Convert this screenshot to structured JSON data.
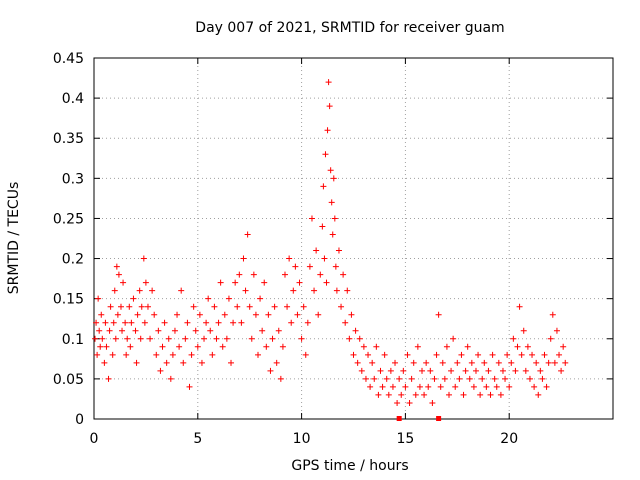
{
  "chart_data": {
    "type": "scatter",
    "title": "Day 007 of 2021, SRMTID for receiver guam",
    "xlabel": "GPS time / hours",
    "ylabel": "SRMTID / TECUs",
    "xlim": [
      0,
      25
    ],
    "ylim": [
      0,
      0.45
    ],
    "x_ticks": [
      0,
      5,
      10,
      15,
      20
    ],
    "x_tick_labels": [
      "0",
      "5",
      "10",
      "15",
      "20"
    ],
    "y_ticks": [
      0,
      0.05,
      0.1,
      0.15,
      0.2,
      0.25,
      0.3,
      0.35,
      0.4,
      0.45
    ],
    "y_tick_labels": [
      "0",
      "0.05",
      "0.1",
      "0.15",
      "0.2",
      "0.25",
      "0.3",
      "0.35",
      "0.4",
      "0.45"
    ],
    "grid": true,
    "marker": "+",
    "color": "#ff0000",
    "series": [
      {
        "name": "SRMTID",
        "points": [
          [
            0.05,
            0.1
          ],
          [
            0.1,
            0.12
          ],
          [
            0.15,
            0.08
          ],
          [
            0.2,
            0.15
          ],
          [
            0.25,
            0.11
          ],
          [
            0.3,
            0.09
          ],
          [
            0.35,
            0.13
          ],
          [
            0.4,
            0.1
          ],
          [
            0.5,
            0.07
          ],
          [
            0.55,
            0.12
          ],
          [
            0.6,
            0.09
          ],
          [
            0.7,
            0.05
          ],
          [
            0.75,
            0.11
          ],
          [
            0.8,
            0.14
          ],
          [
            0.9,
            0.08
          ],
          [
            0.95,
            0.12
          ],
          [
            1.0,
            0.16
          ],
          [
            1.05,
            0.1
          ],
          [
            1.1,
            0.19
          ],
          [
            1.15,
            0.13
          ],
          [
            1.2,
            0.18
          ],
          [
            1.3,
            0.14
          ],
          [
            1.35,
            0.11
          ],
          [
            1.4,
            0.17
          ],
          [
            1.5,
            0.12
          ],
          [
            1.55,
            0.08
          ],
          [
            1.6,
            0.1
          ],
          [
            1.7,
            0.14
          ],
          [
            1.75,
            0.09
          ],
          [
            1.8,
            0.12
          ],
          [
            1.9,
            0.15
          ],
          [
            2.0,
            0.11
          ],
          [
            2.05,
            0.07
          ],
          [
            2.1,
            0.13
          ],
          [
            2.2,
            0.16
          ],
          [
            2.25,
            0.1
          ],
          [
            2.3,
            0.14
          ],
          [
            2.4,
            0.2
          ],
          [
            2.45,
            0.12
          ],
          [
            2.5,
            0.17
          ],
          [
            2.6,
            0.14
          ],
          [
            2.7,
            0.1
          ],
          [
            2.8,
            0.16
          ],
          [
            2.9,
            0.13
          ],
          [
            3.0,
            0.08
          ],
          [
            3.1,
            0.11
          ],
          [
            3.2,
            0.06
          ],
          [
            3.3,
            0.09
          ],
          [
            3.4,
            0.12
          ],
          [
            3.5,
            0.07
          ],
          [
            3.6,
            0.1
          ],
          [
            3.7,
            0.05
          ],
          [
            3.8,
            0.08
          ],
          [
            3.9,
            0.11
          ],
          [
            4.0,
            0.13
          ],
          [
            4.1,
            0.09
          ],
          [
            4.2,
            0.16
          ],
          [
            4.3,
            0.07
          ],
          [
            4.4,
            0.1
          ],
          [
            4.5,
            0.12
          ],
          [
            4.6,
            0.04
          ],
          [
            4.7,
            0.08
          ],
          [
            4.8,
            0.14
          ],
          [
            4.9,
            0.11
          ],
          [
            5.0,
            0.09
          ],
          [
            5.1,
            0.13
          ],
          [
            5.2,
            0.07
          ],
          [
            5.3,
            0.1
          ],
          [
            5.4,
            0.12
          ],
          [
            5.5,
            0.15
          ],
          [
            5.6,
            0.11
          ],
          [
            5.7,
            0.08
          ],
          [
            5.8,
            0.14
          ],
          [
            5.9,
            0.1
          ],
          [
            6.0,
            0.12
          ],
          [
            6.1,
            0.17
          ],
          [
            6.2,
            0.09
          ],
          [
            6.3,
            0.13
          ],
          [
            6.4,
            0.1
          ],
          [
            6.5,
            0.15
          ],
          [
            6.6,
            0.07
          ],
          [
            6.7,
            0.12
          ],
          [
            6.8,
            0.17
          ],
          [
            6.9,
            0.14
          ],
          [
            7.0,
            0.18
          ],
          [
            7.1,
            0.12
          ],
          [
            7.2,
            0.2
          ],
          [
            7.3,
            0.16
          ],
          [
            7.4,
            0.23
          ],
          [
            7.5,
            0.14
          ],
          [
            7.6,
            0.1
          ],
          [
            7.7,
            0.18
          ],
          [
            7.8,
            0.13
          ],
          [
            7.9,
            0.08
          ],
          [
            8.0,
            0.15
          ],
          [
            8.1,
            0.11
          ],
          [
            8.2,
            0.17
          ],
          [
            8.3,
            0.09
          ],
          [
            8.4,
            0.13
          ],
          [
            8.5,
            0.06
          ],
          [
            8.6,
            0.1
          ],
          [
            8.7,
            0.14
          ],
          [
            8.8,
            0.07
          ],
          [
            8.9,
            0.11
          ],
          [
            9.0,
            0.05
          ],
          [
            9.1,
            0.09
          ],
          [
            9.2,
            0.18
          ],
          [
            9.3,
            0.14
          ],
          [
            9.4,
            0.2
          ],
          [
            9.5,
            0.12
          ],
          [
            9.6,
            0.16
          ],
          [
            9.7,
            0.19
          ],
          [
            9.8,
            0.13
          ],
          [
            9.9,
            0.17
          ],
          [
            10.0,
            0.1
          ],
          [
            10.1,
            0.14
          ],
          [
            10.2,
            0.08
          ],
          [
            10.3,
            0.12
          ],
          [
            10.4,
            0.19
          ],
          [
            10.5,
            0.25
          ],
          [
            10.6,
            0.16
          ],
          [
            10.7,
            0.21
          ],
          [
            10.8,
            0.13
          ],
          [
            10.9,
            0.18
          ],
          [
            11.0,
            0.24
          ],
          [
            11.05,
            0.29
          ],
          [
            11.1,
            0.2
          ],
          [
            11.15,
            0.33
          ],
          [
            11.2,
            0.17
          ],
          [
            11.25,
            0.36
          ],
          [
            11.3,
            0.42
          ],
          [
            11.35,
            0.39
          ],
          [
            11.4,
            0.31
          ],
          [
            11.45,
            0.27
          ],
          [
            11.5,
            0.23
          ],
          [
            11.55,
            0.3
          ],
          [
            11.6,
            0.25
          ],
          [
            11.65,
            0.19
          ],
          [
            11.7,
            0.16
          ],
          [
            11.8,
            0.21
          ],
          [
            11.9,
            0.14
          ],
          [
            12.0,
            0.18
          ],
          [
            12.1,
            0.12
          ],
          [
            12.2,
            0.16
          ],
          [
            12.3,
            0.1
          ],
          [
            12.4,
            0.13
          ],
          [
            12.5,
            0.08
          ],
          [
            12.6,
            0.11
          ],
          [
            12.7,
            0.07
          ],
          [
            12.8,
            0.1
          ],
          [
            12.9,
            0.06
          ],
          [
            13.0,
            0.09
          ],
          [
            13.1,
            0.05
          ],
          [
            13.2,
            0.08
          ],
          [
            13.3,
            0.04
          ],
          [
            13.4,
            0.07
          ],
          [
            13.5,
            0.05
          ],
          [
            13.6,
            0.09
          ],
          [
            13.7,
            0.03
          ],
          [
            13.8,
            0.06
          ],
          [
            13.9,
            0.04
          ],
          [
            14.0,
            0.08
          ],
          [
            14.1,
            0.05
          ],
          [
            14.2,
            0.03
          ],
          [
            14.3,
            0.06
          ],
          [
            14.4,
            0.04
          ],
          [
            14.5,
            0.07
          ],
          [
            14.6,
            0.02
          ],
          [
            14.7,
            0.05
          ],
          [
            14.8,
            0.03
          ],
          [
            14.9,
            0.06
          ],
          [
            15.0,
            0.04
          ],
          [
            15.1,
            0.08
          ],
          [
            15.2,
            0.02
          ],
          [
            15.3,
            0.05
          ],
          [
            15.4,
            0.07
          ],
          [
            15.5,
            0.03
          ],
          [
            15.6,
            0.09
          ],
          [
            15.7,
            0.04
          ],
          [
            15.8,
            0.06
          ],
          [
            15.9,
            0.03
          ],
          [
            16.0,
            0.07
          ],
          [
            16.1,
            0.04
          ],
          [
            16.2,
            0.06
          ],
          [
            16.3,
            0.02
          ],
          [
            16.4,
            0.05
          ],
          [
            16.5,
            0.08
          ],
          [
            16.6,
            0.13
          ],
          [
            16.7,
            0.04
          ],
          [
            16.8,
            0.07
          ],
          [
            16.9,
            0.05
          ],
          [
            17.0,
            0.09
          ],
          [
            17.1,
            0.03
          ],
          [
            17.2,
            0.06
          ],
          [
            17.3,
            0.1
          ],
          [
            17.4,
            0.04
          ],
          [
            17.5,
            0.07
          ],
          [
            17.6,
            0.05
          ],
          [
            17.7,
            0.08
          ],
          [
            17.8,
            0.03
          ],
          [
            17.9,
            0.06
          ],
          [
            18.0,
            0.09
          ],
          [
            18.1,
            0.05
          ],
          [
            18.2,
            0.07
          ],
          [
            18.3,
            0.04
          ],
          [
            18.4,
            0.06
          ],
          [
            18.5,
            0.08
          ],
          [
            18.6,
            0.03
          ],
          [
            18.7,
            0.05
          ],
          [
            18.8,
            0.07
          ],
          [
            18.9,
            0.04
          ],
          [
            19.0,
            0.06
          ],
          [
            19.1,
            0.03
          ],
          [
            19.2,
            0.08
          ],
          [
            19.3,
            0.05
          ],
          [
            19.4,
            0.04
          ],
          [
            19.5,
            0.07
          ],
          [
            19.6,
            0.03
          ],
          [
            19.7,
            0.06
          ],
          [
            19.8,
            0.05
          ],
          [
            19.9,
            0.08
          ],
          [
            20.0,
            0.04
          ],
          [
            20.1,
            0.07
          ],
          [
            20.2,
            0.1
          ],
          [
            20.3,
            0.06
          ],
          [
            20.4,
            0.09
          ],
          [
            20.5,
            0.14
          ],
          [
            20.6,
            0.08
          ],
          [
            20.7,
            0.11
          ],
          [
            20.8,
            0.06
          ],
          [
            20.9,
            0.09
          ],
          [
            21.0,
            0.05
          ],
          [
            21.1,
            0.08
          ],
          [
            21.2,
            0.04
          ],
          [
            21.3,
            0.07
          ],
          [
            21.4,
            0.03
          ],
          [
            21.5,
            0.06
          ],
          [
            21.6,
            0.05
          ],
          [
            21.7,
            0.08
          ],
          [
            21.8,
            0.04
          ],
          [
            21.9,
            0.07
          ],
          [
            22.0,
            0.1
          ],
          [
            22.1,
            0.13
          ],
          [
            22.2,
            0.07
          ],
          [
            22.3,
            0.11
          ],
          [
            22.4,
            0.08
          ],
          [
            22.5,
            0.06
          ],
          [
            22.6,
            0.09
          ],
          [
            22.7,
            0.07
          ]
        ]
      }
    ],
    "baseline_markers": [
      14.7,
      16.6
    ]
  }
}
